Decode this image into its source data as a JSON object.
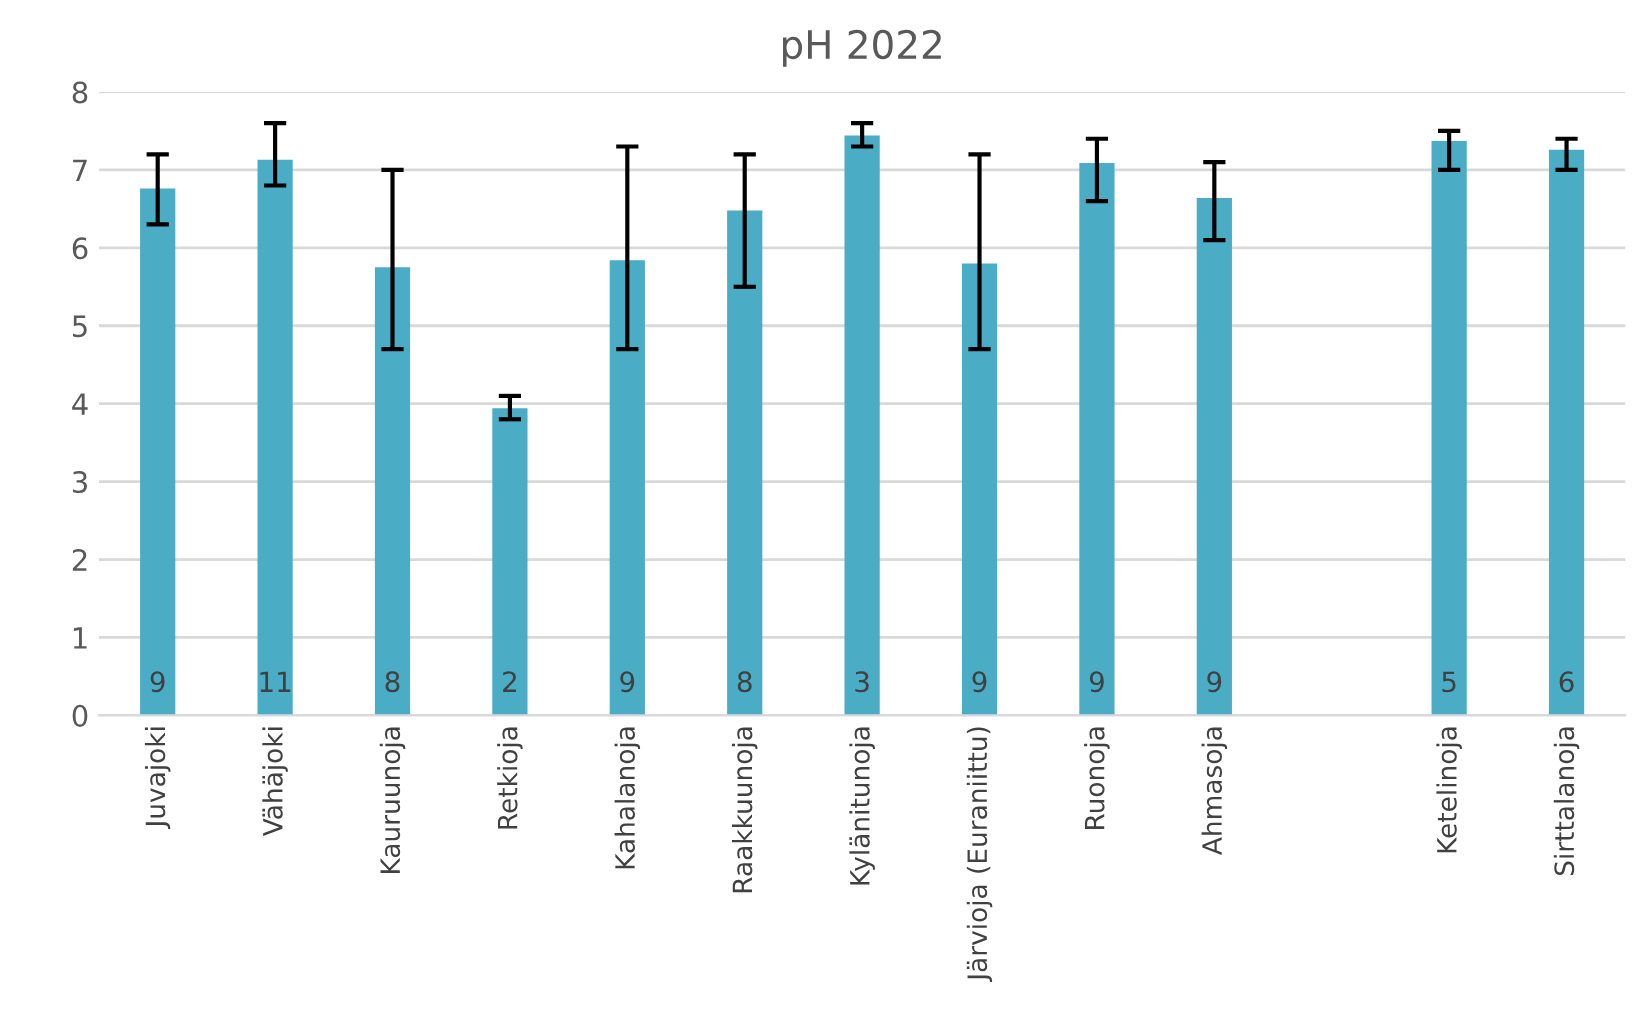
{
  "chart_data": {
    "type": "bar",
    "title": "pH 2022",
    "categories": [
      "Juvajoki",
      "Vähäjoki",
      "Kauruunoja",
      "Retkioja",
      "Kahalanoja",
      "Raakkuunoja",
      "Kylänitunoja",
      "Järvioja (Euraniittu)",
      "Ruonoja",
      "Ahmasoja",
      null,
      "Ketelinoja",
      "Sirttalanoja"
    ],
    "values": [
      6.76,
      7.13,
      5.75,
      3.94,
      5.84,
      6.48,
      7.44,
      5.8,
      7.09,
      6.64,
      null,
      7.37,
      7.26
    ],
    "errors": [
      [
        6.3,
        7.2
      ],
      [
        6.8,
        7.6
      ],
      [
        4.7,
        7.0
      ],
      [
        3.8,
        4.1
      ],
      [
        4.7,
        7.3
      ],
      [
        5.5,
        7.2
      ],
      [
        7.3,
        7.6
      ],
      [
        4.7,
        7.2
      ],
      [
        6.6,
        7.4
      ],
      [
        6.1,
        7.1
      ],
      null,
      [
        7.0,
        7.5
      ],
      [
        7.0,
        7.4
      ]
    ],
    "color": "#4bacc6",
    "ylim": [
      0,
      8
    ],
    "yticks": [
      0,
      1,
      2,
      3,
      4,
      5,
      6,
      7,
      8
    ],
    "grid": "y",
    "annotations": [
      "9",
      "11",
      "8",
      "2",
      "9",
      "8",
      "3",
      "9",
      "9",
      "9",
      "5",
      "6"
    ]
  }
}
